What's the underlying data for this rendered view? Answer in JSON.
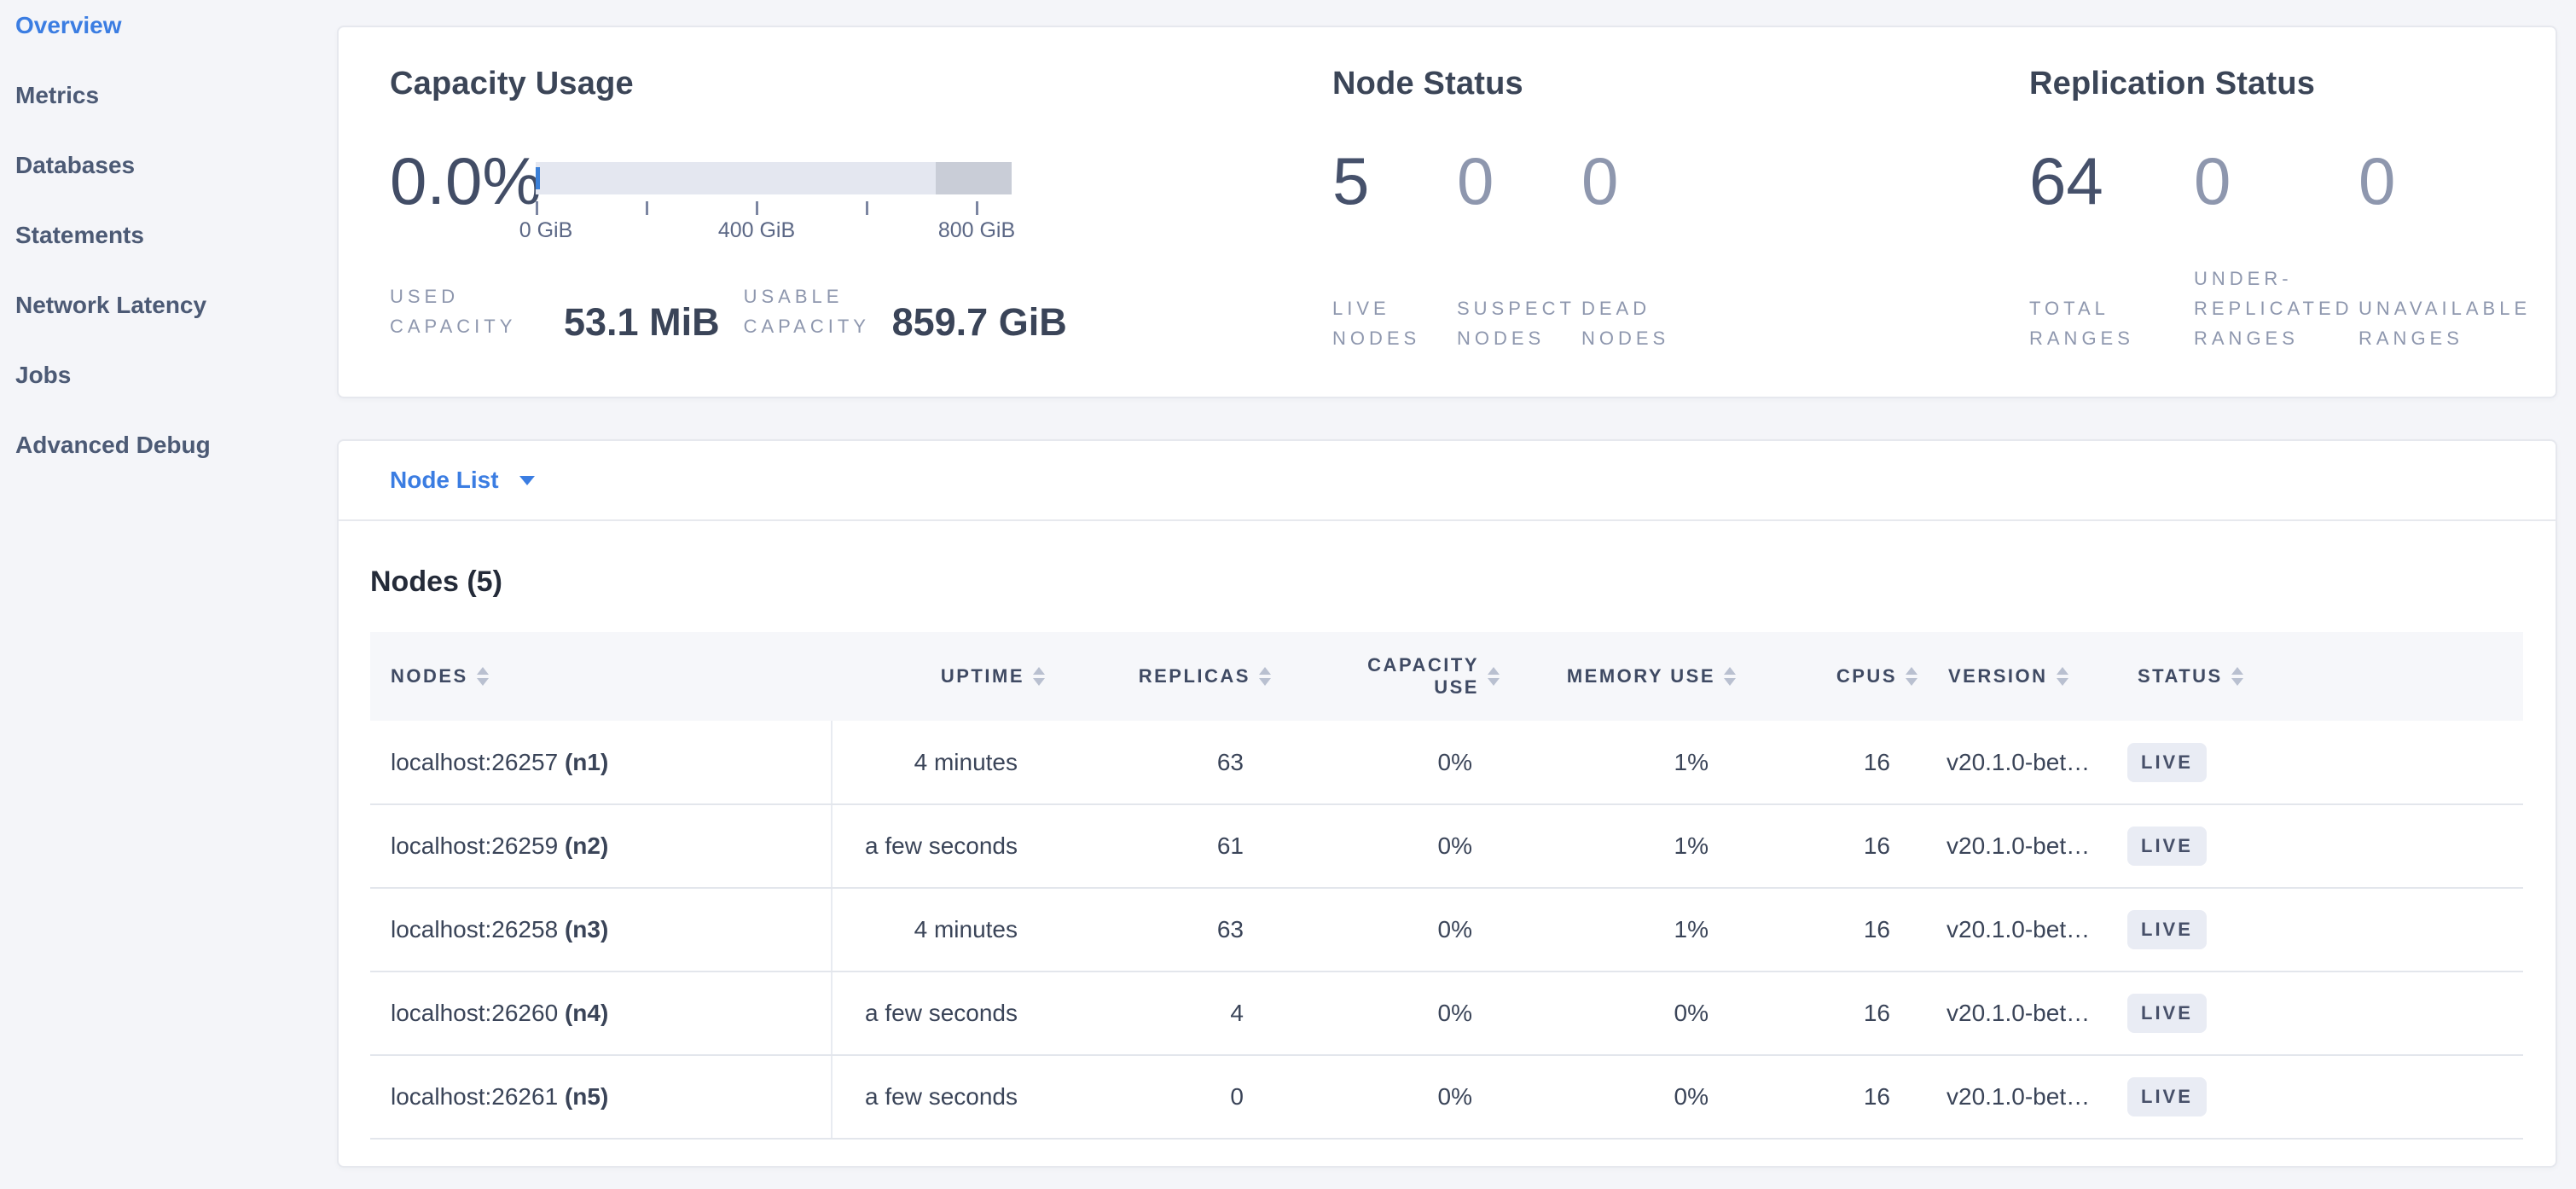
{
  "colors": {
    "accent_blue": "#3b7de2",
    "page_bg": "#f4f5f9",
    "metric_dark": "#46516b",
    "metric_muted": "#8e97ae",
    "badge_bg": "#e9ecf4",
    "bar_track": "#e4e7f0",
    "bar_dark_segment": "#c9cdd7",
    "bar_used_tick": "#3b80d8"
  },
  "sidebar": {
    "items": [
      {
        "label": "Overview",
        "active": true
      },
      {
        "label": "Metrics",
        "active": false
      },
      {
        "label": "Databases",
        "active": false
      },
      {
        "label": "Statements",
        "active": false
      },
      {
        "label": "Network Latency",
        "active": false
      },
      {
        "label": "Jobs",
        "active": false
      },
      {
        "label": "Advanced Debug",
        "active": false
      }
    ]
  },
  "summary": {
    "capacity": {
      "title": "Capacity Usage",
      "percent": "0.0%",
      "axis_ticks": [
        "0 GiB",
        "400 GiB",
        "800 GiB"
      ],
      "stats": [
        {
          "label": "USED CAPACITY",
          "value": "53.1 MiB"
        },
        {
          "label": "USABLE CAPACITY",
          "value": "859.7 GiB"
        }
      ]
    },
    "node_status": {
      "title": "Node Status",
      "metrics": [
        {
          "value": "5",
          "label": "LIVE NODES",
          "emph": true
        },
        {
          "value": "0",
          "label": "SUSPECT NODES",
          "emph": false
        },
        {
          "value": "0",
          "label": "DEAD NODES",
          "emph": false
        }
      ]
    },
    "replication": {
      "title": "Replication Status",
      "metrics": [
        {
          "value": "64",
          "label": "TOTAL RANGES",
          "emph": true
        },
        {
          "value": "0",
          "label": "UNDER-REPLICATED RANGES",
          "emph": false
        },
        {
          "value": "0",
          "label": "UNAVAILABLE RANGES",
          "emph": false
        }
      ]
    }
  },
  "node_list": {
    "dropdown_label": "Node List",
    "heading": "Nodes (5)",
    "columns": [
      "NODES",
      "UPTIME",
      "REPLICAS",
      "CAPACITY USE",
      "MEMORY USE",
      "CPUS",
      "VERSION",
      "STATUS"
    ],
    "rows": [
      {
        "address": "localhost:26257",
        "id": "(n1)",
        "uptime": "4 minutes",
        "replicas": "63",
        "capacity_use": "0%",
        "memory_use": "1%",
        "cpus": "16",
        "version": "v20.1.0-bet…",
        "status": "LIVE"
      },
      {
        "address": "localhost:26259",
        "id": "(n2)",
        "uptime": "a few seconds",
        "replicas": "61",
        "capacity_use": "0%",
        "memory_use": "1%",
        "cpus": "16",
        "version": "v20.1.0-bet…",
        "status": "LIVE"
      },
      {
        "address": "localhost:26258",
        "id": "(n3)",
        "uptime": "4 minutes",
        "replicas": "63",
        "capacity_use": "0%",
        "memory_use": "1%",
        "cpus": "16",
        "version": "v20.1.0-bet…",
        "status": "LIVE"
      },
      {
        "address": "localhost:26260",
        "id": "(n4)",
        "uptime": "a few seconds",
        "replicas": "4",
        "capacity_use": "0%",
        "memory_use": "0%",
        "cpus": "16",
        "version": "v20.1.0-bet…",
        "status": "LIVE"
      },
      {
        "address": "localhost:26261",
        "id": "(n5)",
        "uptime": "a few seconds",
        "replicas": "0",
        "capacity_use": "0%",
        "memory_use": "0%",
        "cpus": "16",
        "version": "v20.1.0-bet…",
        "status": "LIVE"
      }
    ]
  }
}
